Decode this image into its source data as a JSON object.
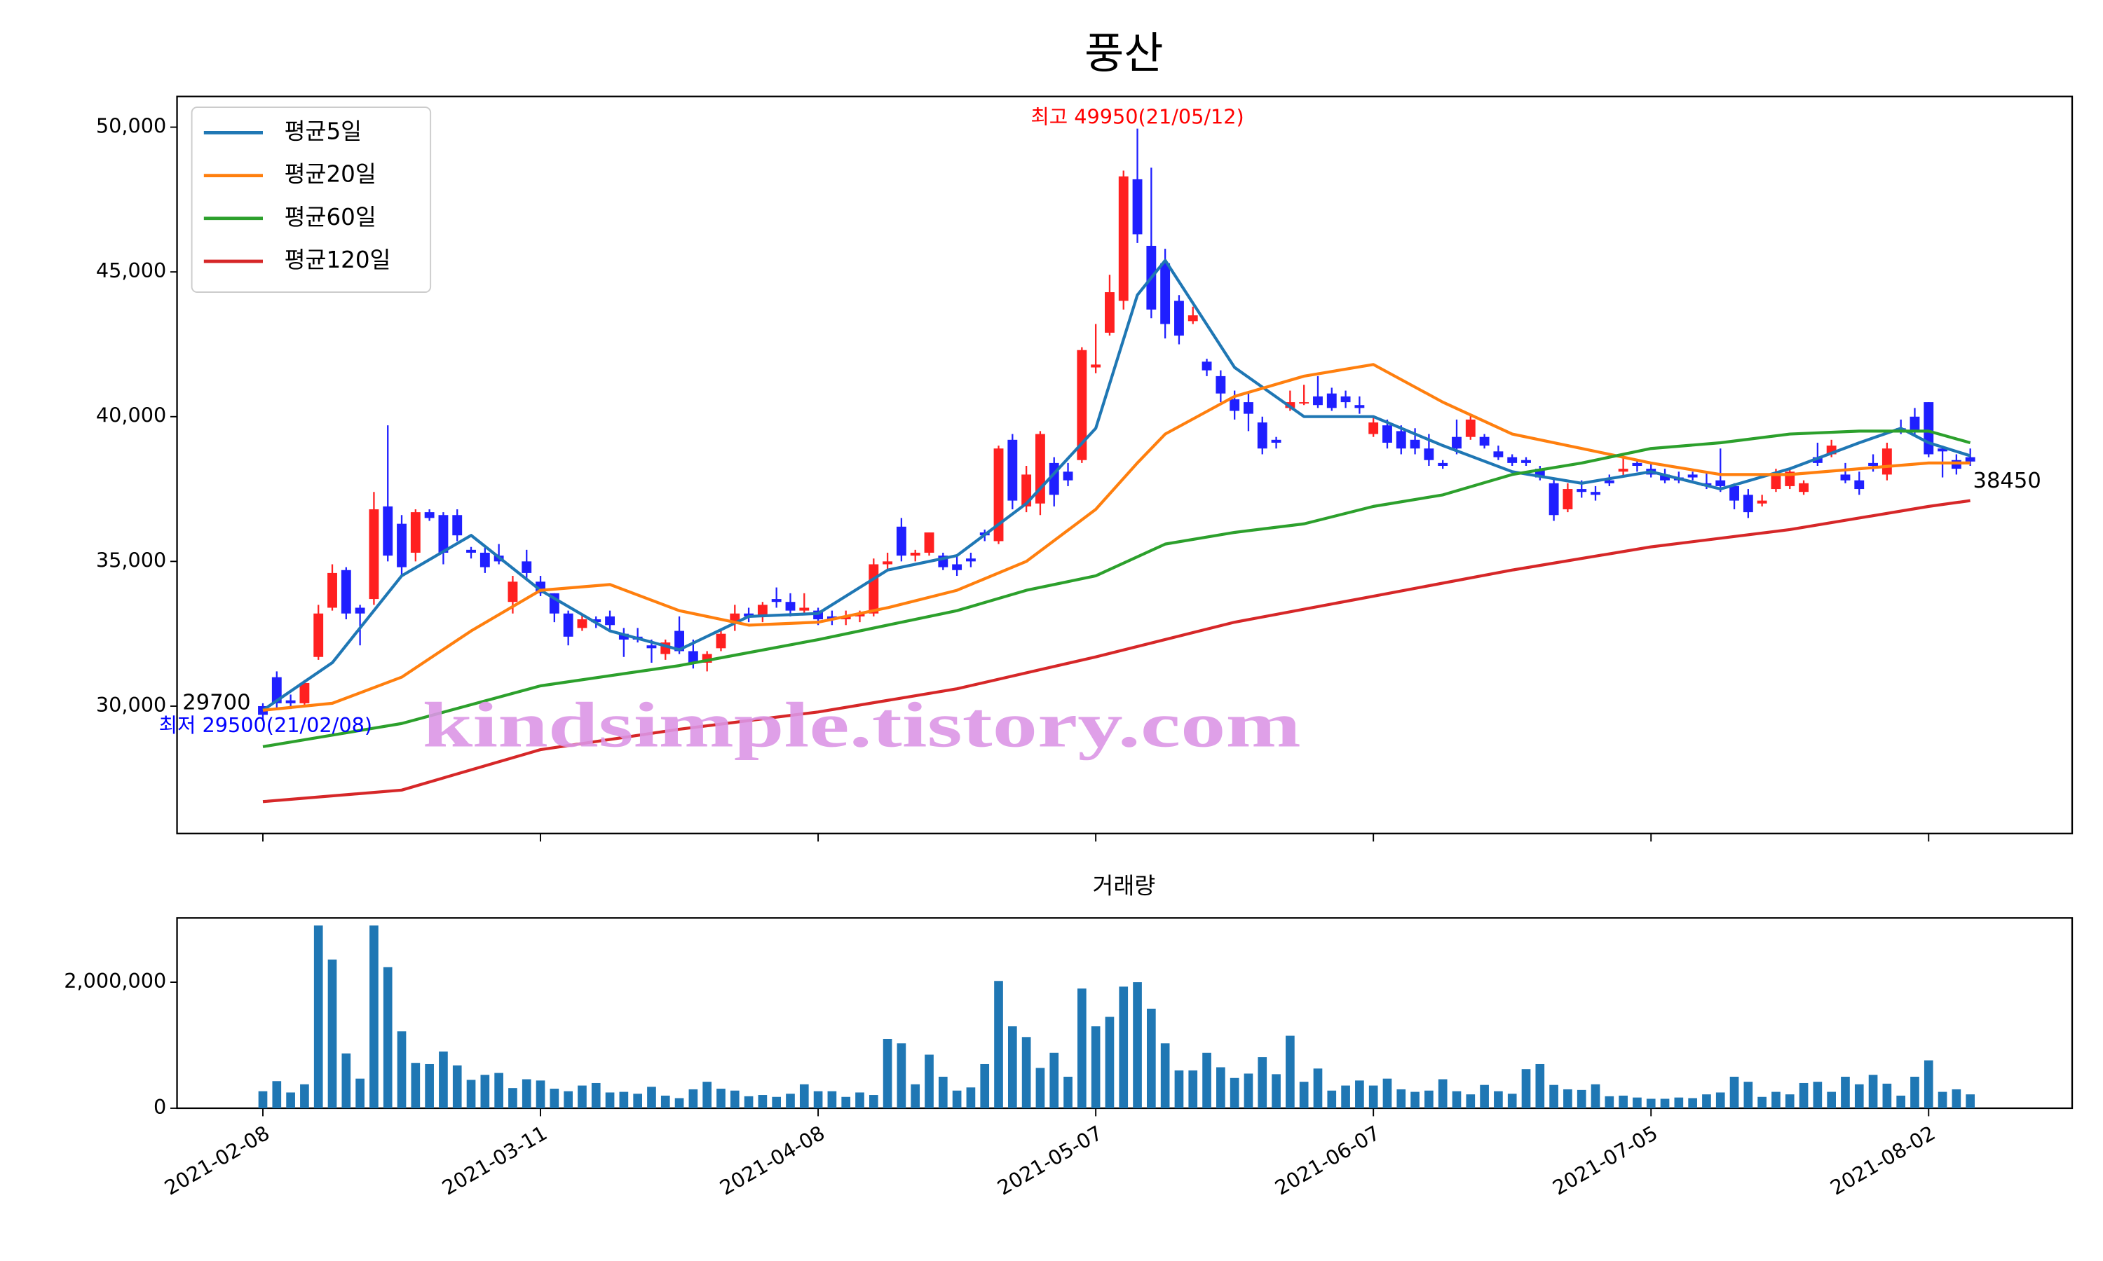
{
  "chart_data": {
    "type": "candlestick",
    "title": "풍산",
    "volume_title": "거래량",
    "watermark": "kindsimple.tistory.com",
    "max_annotation": "최고 49950(21/05/12)",
    "min_annotation": "최저 29500(21/02/08)",
    "up_color": "#ff2020",
    "down_color": "#1f1fff",
    "volume_color": "#1f77b4",
    "legend": "upper left",
    "categories": [
      "2021-02-08",
      "2021-02-09",
      "2021-02-10",
      "2021-02-15",
      "2021-02-16",
      "2021-02-17",
      "2021-02-18",
      "2021-02-19",
      "2021-02-22",
      "2021-02-23",
      "2021-02-24",
      "2021-02-25",
      "2021-02-26",
      "2021-03-02",
      "2021-03-03",
      "2021-03-04",
      "2021-03-05",
      "2021-03-08",
      "2021-03-09",
      "2021-03-10",
      "2021-03-11",
      "2021-03-12",
      "2021-03-15",
      "2021-03-16",
      "2021-03-17",
      "2021-03-18",
      "2021-03-19",
      "2021-03-22",
      "2021-03-23",
      "2021-03-24",
      "2021-03-25",
      "2021-03-26",
      "2021-03-29",
      "2021-03-30",
      "2021-03-31",
      "2021-04-01",
      "2021-04-02",
      "2021-04-05",
      "2021-04-06",
      "2021-04-07",
      "2021-04-08",
      "2021-04-09",
      "2021-04-12",
      "2021-04-13",
      "2021-04-14",
      "2021-04-15",
      "2021-04-16",
      "2021-04-19",
      "2021-04-20",
      "2021-04-21",
      "2021-04-22",
      "2021-04-23",
      "2021-04-26",
      "2021-04-27",
      "2021-04-28",
      "2021-04-29",
      "2021-04-30",
      "2021-05-03",
      "2021-05-04",
      "2021-05-06",
      "2021-05-07",
      "2021-05-10",
      "2021-05-11",
      "2021-05-12",
      "2021-05-13",
      "2021-05-14",
      "2021-05-17",
      "2021-05-18",
      "2021-05-20",
      "2021-05-21",
      "2021-05-24",
      "2021-05-25",
      "2021-05-26",
      "2021-05-27",
      "2021-05-28",
      "2021-05-31",
      "2021-06-01",
      "2021-06-02",
      "2021-06-03",
      "2021-06-04",
      "2021-06-07",
      "2021-06-08",
      "2021-06-09",
      "2021-06-10",
      "2021-06-11",
      "2021-06-14",
      "2021-06-15",
      "2021-06-16",
      "2021-06-17",
      "2021-06-18",
      "2021-06-21",
      "2021-06-22",
      "2021-06-23",
      "2021-06-24",
      "2021-06-25",
      "2021-06-28",
      "2021-06-29",
      "2021-06-30",
      "2021-07-01",
      "2021-07-02",
      "2021-07-05",
      "2021-07-06",
      "2021-07-07",
      "2021-07-08",
      "2021-07-09",
      "2021-07-12",
      "2021-07-13",
      "2021-07-14",
      "2021-07-15",
      "2021-07-16",
      "2021-07-19",
      "2021-07-20",
      "2021-07-21",
      "2021-07-22",
      "2021-07-23",
      "2021-07-26",
      "2021-07-27",
      "2021-07-28",
      "2021-07-29",
      "2021-07-30",
      "2021-08-02",
      "2021-08-03",
      "2021-08-04",
      "2021-08-05"
    ],
    "ohlc": [
      [
        30000,
        30100,
        29500,
        29700
      ],
      [
        31000,
        31200,
        29900,
        30100
      ],
      [
        30200,
        30400,
        29900,
        30100
      ],
      [
        30100,
        30900,
        30000,
        30800
      ],
      [
        31700,
        33500,
        31600,
        33200
      ],
      [
        33400,
        34900,
        33300,
        34600
      ],
      [
        34700,
        34800,
        33000,
        33200
      ],
      [
        33400,
        33500,
        32100,
        33200
      ],
      [
        33700,
        37400,
        33500,
        36800
      ],
      [
        36900,
        39700,
        35000,
        35200
      ],
      [
        36300,
        36600,
        34500,
        34800
      ],
      [
        35300,
        36800,
        35000,
        36700
      ],
      [
        36700,
        36800,
        36400,
        36500
      ],
      [
        36600,
        36700,
        34900,
        35300
      ],
      [
        36600,
        36800,
        35700,
        35900
      ],
      [
        35400,
        35500,
        35100,
        35300
      ],
      [
        35300,
        35500,
        34600,
        34800
      ],
      [
        35200,
        35600,
        34900,
        35000
      ],
      [
        33600,
        34500,
        33200,
        34300
      ],
      [
        35000,
        35400,
        34400,
        34600
      ],
      [
        34300,
        34500,
        33800,
        33900
      ],
      [
        33900,
        33900,
        32900,
        33200
      ],
      [
        33200,
        33300,
        32100,
        32400
      ],
      [
        32700,
        33200,
        32600,
        33000
      ],
      [
        33000,
        33100,
        32700,
        32900
      ],
      [
        33100,
        33300,
        32600,
        32800
      ],
      [
        32500,
        32700,
        31700,
        32300
      ],
      [
        32400,
        32700,
        32200,
        32300
      ],
      [
        32100,
        32300,
        31500,
        32000
      ],
      [
        31800,
        32300,
        31600,
        32200
      ],
      [
        32600,
        33100,
        31800,
        31900
      ],
      [
        31900,
        32300,
        31300,
        31500
      ],
      [
        31500,
        31900,
        31200,
        31800
      ],
      [
        32000,
        32600,
        31900,
        32500
      ],
      [
        32900,
        33500,
        32600,
        33200
      ],
      [
        33200,
        33400,
        32900,
        33100
      ],
      [
        33100,
        33600,
        32900,
        33500
      ],
      [
        33700,
        34100,
        33400,
        33600
      ],
      [
        33600,
        33900,
        33100,
        33300
      ],
      [
        33300,
        33900,
        33200,
        33400
      ],
      [
        33300,
        33400,
        32800,
        33000
      ],
      [
        33100,
        33300,
        32800,
        33000
      ],
      [
        33000,
        33300,
        32800,
        33100
      ],
      [
        33100,
        33300,
        32900,
        33200
      ],
      [
        33200,
        35100,
        33100,
        34900
      ],
      [
        34900,
        35300,
        34700,
        35000
      ],
      [
        36200,
        36500,
        35000,
        35200
      ],
      [
        35200,
        35400,
        35000,
        35300
      ],
      [
        35300,
        36000,
        35200,
        36000
      ],
      [
        35200,
        35300,
        34700,
        34800
      ],
      [
        34900,
        35200,
        34500,
        34700
      ],
      [
        35100,
        35300,
        34800,
        35000
      ],
      [
        36000,
        36100,
        35700,
        35900
      ],
      [
        35700,
        39000,
        35600,
        38900
      ],
      [
        39200,
        39400,
        36800,
        37100
      ],
      [
        36900,
        38300,
        36700,
        38000
      ],
      [
        37000,
        39500,
        36600,
        39400
      ],
      [
        38400,
        38600,
        36900,
        37300
      ],
      [
        38100,
        38400,
        37600,
        37800
      ],
      [
        38500,
        42400,
        38400,
        42300
      ],
      [
        41700,
        43200,
        41500,
        41800
      ],
      [
        42900,
        44900,
        42800,
        44300
      ],
      [
        44000,
        48500,
        43700,
        48300
      ],
      [
        48200,
        49950,
        46000,
        46300
      ],
      [
        45900,
        48600,
        43400,
        43700
      ],
      [
        45300,
        45800,
        42700,
        43200
      ],
      [
        44000,
        44200,
        42500,
        42800
      ],
      [
        43300,
        43800,
        43200,
        43500
      ],
      [
        41900,
        42000,
        41400,
        41600
      ],
      [
        41400,
        41600,
        40500,
        40800
      ],
      [
        40600,
        40900,
        39900,
        40200
      ],
      [
        40500,
        40800,
        39500,
        40100
      ],
      [
        39800,
        40000,
        38700,
        38900
      ],
      [
        39200,
        39300,
        38900,
        39100
      ],
      [
        40300,
        40900,
        40200,
        40500
      ],
      [
        40500,
        41100,
        40400,
        40500
      ],
      [
        40700,
        41400,
        40300,
        40400
      ],
      [
        40800,
        41000,
        40200,
        40300
      ],
      [
        40700,
        40900,
        40300,
        40500
      ],
      [
        40400,
        40700,
        40100,
        40300
      ],
      [
        39400,
        40000,
        39300,
        39800
      ],
      [
        39700,
        39900,
        38900,
        39100
      ],
      [
        39500,
        39700,
        38700,
        38900
      ],
      [
        39200,
        39600,
        38700,
        38900
      ],
      [
        38900,
        39400,
        38300,
        38500
      ],
      [
        38400,
        38500,
        38200,
        38300
      ],
      [
        39300,
        39900,
        38700,
        38900
      ],
      [
        39300,
        40100,
        39200,
        39900
      ],
      [
        39300,
        39400,
        38900,
        39000
      ],
      [
        38800,
        39000,
        38500,
        38600
      ],
      [
        38600,
        38700,
        38300,
        38400
      ],
      [
        38500,
        38600,
        38300,
        38400
      ],
      [
        38200,
        38300,
        37800,
        37900
      ],
      [
        37700,
        37900,
        36400,
        36600
      ],
      [
        36800,
        37700,
        36700,
        37500
      ],
      [
        37500,
        37800,
        37200,
        37400
      ],
      [
        37400,
        37600,
        37100,
        37300
      ],
      [
        37800,
        38000,
        37600,
        37700
      ],
      [
        38100,
        38600,
        37900,
        38200
      ],
      [
        38400,
        38500,
        38100,
        38300
      ],
      [
        38200,
        38400,
        37900,
        38000
      ],
      [
        38000,
        38200,
        37700,
        37800
      ],
      [
        37900,
        38100,
        37700,
        37800
      ],
      [
        38000,
        38100,
        37800,
        37900
      ],
      [
        37700,
        38100,
        37500,
        37600
      ],
      [
        37800,
        38900,
        37400,
        37600
      ],
      [
        37600,
        37700,
        36800,
        37100
      ],
      [
        37300,
        37500,
        36500,
        36700
      ],
      [
        37000,
        37300,
        36900,
        37100
      ],
      [
        37500,
        38200,
        37400,
        38000
      ],
      [
        37600,
        38200,
        37500,
        38100
      ],
      [
        37400,
        37800,
        37300,
        37700
      ],
      [
        38600,
        39100,
        38300,
        38400
      ],
      [
        38700,
        39200,
        38600,
        39000
      ],
      [
        38000,
        38400,
        37700,
        37800
      ],
      [
        37800,
        38100,
        37300,
        37500
      ],
      [
        38400,
        38700,
        38100,
        38300
      ],
      [
        38000,
        39100,
        37800,
        38900
      ],
      [
        39600,
        39900,
        39400,
        39500
      ],
      [
        40000,
        40300,
        39400,
        39500
      ],
      [
        40500,
        40500,
        38600,
        38700
      ],
      [
        38900,
        39000,
        37900,
        38800
      ],
      [
        38500,
        38700,
        38000,
        38200
      ],
      [
        38600,
        38900,
        38300,
        38450
      ]
    ],
    "volume": [
      270000,
      430000,
      250000,
      380000,
      2900000,
      2360000,
      870000,
      470000,
      2900000,
      2240000,
      1220000,
      720000,
      700000,
      900000,
      680000,
      450000,
      530000,
      560000,
      320000,
      460000,
      440000,
      310000,
      270000,
      360000,
      400000,
      250000,
      260000,
      230000,
      340000,
      200000,
      160000,
      300000,
      420000,
      310000,
      280000,
      190000,
      210000,
      180000,
      230000,
      380000,
      270000,
      270000,
      180000,
      250000,
      210000,
      1100000,
      1030000,
      380000,
      850000,
      500000,
      280000,
      330000,
      700000,
      2020000,
      1300000,
      1130000,
      640000,
      880000,
      500000,
      1900000,
      1300000,
      1450000,
      1930000,
      2000000,
      1580000,
      1030000,
      600000,
      600000,
      880000,
      650000,
      480000,
      550000,
      810000,
      540000,
      1150000,
      420000,
      630000,
      280000,
      360000,
      440000,
      360000,
      470000,
      300000,
      260000,
      280000,
      460000,
      270000,
      220000,
      370000,
      270000,
      230000,
      620000,
      700000,
      370000,
      300000,
      290000,
      380000,
      190000,
      200000,
      170000,
      150000,
      150000,
      170000,
      160000,
      220000,
      250000,
      500000,
      420000,
      180000,
      260000,
      220000,
      400000,
      420000,
      260000,
      500000,
      380000,
      530000,
      390000,
      200000,
      500000,
      760000,
      260000,
      300000,
      220000
    ],
    "series": [
      {
        "name": "평균5일",
        "color": "#1f77b4",
        "x": [
          "2021-02-08",
          "2021-02-17",
          "2021-02-24",
          "2021-03-04",
          "2021-03-11",
          "2021-03-18",
          "2021-03-25",
          "2021-04-01",
          "2021-04-08",
          "2021-04-15",
          "2021-04-22",
          "2021-04-29",
          "2021-05-07",
          "2021-05-12",
          "2021-05-14",
          "2021-05-24",
          "2021-05-31",
          "2021-06-07",
          "2021-06-14",
          "2021-06-21",
          "2021-06-28",
          "2021-07-05",
          "2021-07-12",
          "2021-07-19",
          "2021-07-26",
          "2021-07-29",
          "2021-08-02",
          "2021-08-05"
        ],
        "values": [
          29860,
          31500,
          34500,
          35900,
          34000,
          32600,
          31950,
          33100,
          33200,
          34700,
          35200,
          37000,
          39600,
          44200,
          45400,
          41700,
          40000,
          40000,
          39000,
          38100,
          37700,
          38100,
          37500,
          38200,
          39100,
          39600,
          39100,
          38650
        ]
      },
      {
        "name": "평균20일",
        "color": "#ff7f0e",
        "x": [
          "2021-02-08",
          "2021-02-17",
          "2021-02-24",
          "2021-03-04",
          "2021-03-11",
          "2021-03-18",
          "2021-03-25",
          "2021-04-01",
          "2021-04-08",
          "2021-04-15",
          "2021-04-22",
          "2021-04-29",
          "2021-05-07",
          "2021-05-12",
          "2021-05-14",
          "2021-05-24",
          "2021-05-31",
          "2021-06-07",
          "2021-06-14",
          "2021-06-21",
          "2021-06-28",
          "2021-07-05",
          "2021-07-12",
          "2021-07-19",
          "2021-07-26",
          "2021-08-02",
          "2021-08-05"
        ],
        "values": [
          29860,
          30100,
          31000,
          32600,
          34000,
          34200,
          33300,
          32800,
          32900,
          33400,
          34000,
          35000,
          36800,
          38400,
          39400,
          40700,
          41400,
          41800,
          40500,
          39400,
          38900,
          38400,
          38000,
          38000,
          38200,
          38400,
          38400
        ]
      },
      {
        "name": "평균60일",
        "color": "#2ca02c",
        "x": [
          "2021-02-08",
          "2021-02-24",
          "2021-03-11",
          "2021-03-25",
          "2021-04-08",
          "2021-04-22",
          "2021-04-29",
          "2021-05-07",
          "2021-05-14",
          "2021-05-24",
          "2021-05-31",
          "2021-06-07",
          "2021-06-14",
          "2021-06-21",
          "2021-06-28",
          "2021-07-05",
          "2021-07-12",
          "2021-07-19",
          "2021-07-26",
          "2021-08-02",
          "2021-08-05"
        ],
        "values": [
          28600,
          29400,
          30700,
          31400,
          32300,
          33300,
          34000,
          34500,
          35600,
          36000,
          36300,
          36900,
          37300,
          38000,
          38400,
          38900,
          39100,
          39400,
          39500,
          39500,
          39100
        ]
      },
      {
        "name": "평균120일",
        "color": "#d62728",
        "x": [
          "2021-02-08",
          "2021-02-24",
          "2021-03-11",
          "2021-03-25",
          "2021-04-08",
          "2021-04-22",
          "2021-05-07",
          "2021-05-24",
          "2021-06-07",
          "2021-06-21",
          "2021-07-05",
          "2021-07-19",
          "2021-08-02",
          "2021-08-05"
        ],
        "values": [
          26700,
          27100,
          28500,
          29200,
          29800,
          30600,
          31700,
          32900,
          33800,
          34700,
          35500,
          36100,
          36900,
          37100
        ]
      }
    ],
    "ylim": [
      25600,
      51060
    ],
    "yticks": [
      {
        "value": 30000,
        "label": "30,000"
      },
      {
        "value": 35000,
        "label": "35,000"
      },
      {
        "value": 40000,
        "label": "40,000"
      },
      {
        "value": 45000,
        "label": "45,000"
      },
      {
        "value": 50000,
        "label": "50,000"
      }
    ],
    "volume_ylim": [
      0,
      3020000
    ],
    "volume_yticks": [
      0,
      {
        "value": 2000000,
        "label": "2,000,000"
      }
    ],
    "xticks": [
      "2021-02-08",
      "2021-03-11",
      "2021-04-08",
      "2021-05-07",
      "2021-06-07",
      "2021-07-05",
      "2021-08-02"
    ]
  }
}
